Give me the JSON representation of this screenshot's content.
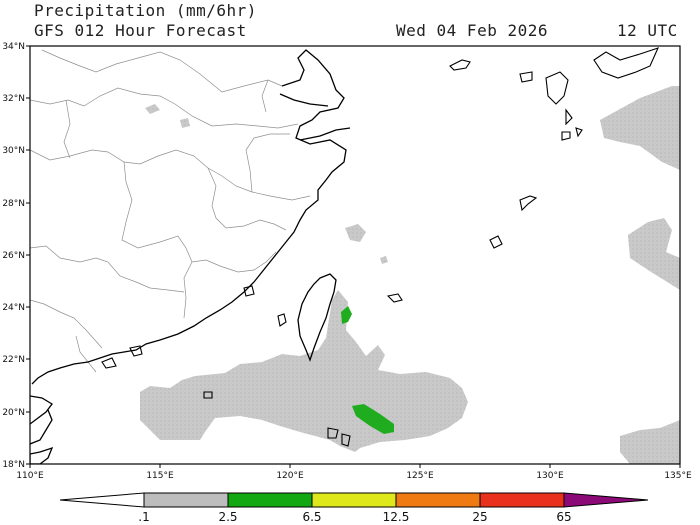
{
  "header": {
    "line1": "Precipitation (mm/6hr)",
    "line2": "GFS 012 Hour Forecast",
    "date": "Wed 04 Feb 2026",
    "utc": "12 UTC"
  },
  "map": {
    "lat_labels": [
      "34°N",
      "32°N",
      "30°N",
      "28°N",
      "26°N",
      "24°N",
      "22°N",
      "20°N",
      "18°N"
    ],
    "lon_labels": [
      "110°E",
      "115°E",
      "120°E",
      "125°E",
      "130°E",
      "135°E"
    ],
    "lat_range": [
      18,
      34
    ],
    "lon_range": [
      110,
      135
    ]
  },
  "colorbar": {
    "labels": [
      ".1",
      "2.5",
      "6.5",
      "12.5",
      "25",
      "65"
    ],
    "colors": [
      "#bdbdbd",
      "#11a811",
      "#dfe81a",
      "#f07a12",
      "#e8301a"
    ],
    "low_color": "#ffffff",
    "high_color": "#8c0a78"
  },
  "colors": {
    "light_precip": "#c9c9c9",
    "moderate_precip": "#1fad1f",
    "land_border": "#9a9a9a",
    "coastline": "#000000"
  }
}
